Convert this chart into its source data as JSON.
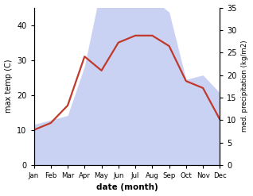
{
  "months": [
    "Jan",
    "Feb",
    "Mar",
    "Apr",
    "May",
    "Jun",
    "Jul",
    "Aug",
    "Sep",
    "Oct",
    "Nov",
    "Dec"
  ],
  "temp": [
    10,
    12,
    17,
    31,
    27,
    35,
    37,
    37,
    34,
    24,
    22,
    13
  ],
  "precip_mm": [
    9,
    10,
    11,
    22,
    40,
    35,
    37,
    37,
    34,
    19,
    20,
    16
  ],
  "temp_color": "#c0392b",
  "precip_fill_color": "#b8c4f0",
  "precip_fill_alpha": 0.75,
  "xlabel": "date (month)",
  "ylabel_left": "max temp (C)",
  "ylabel_right": "med. precipitation (kg/m2)",
  "ylim_left": [
    0,
    45
  ],
  "ylim_right": [
    0,
    35
  ],
  "yticks_left": [
    0,
    10,
    20,
    30,
    40
  ],
  "yticks_right": [
    0,
    5,
    10,
    15,
    20,
    25,
    30,
    35
  ],
  "background_color": "#ffffff",
  "temp_linewidth": 1.6
}
